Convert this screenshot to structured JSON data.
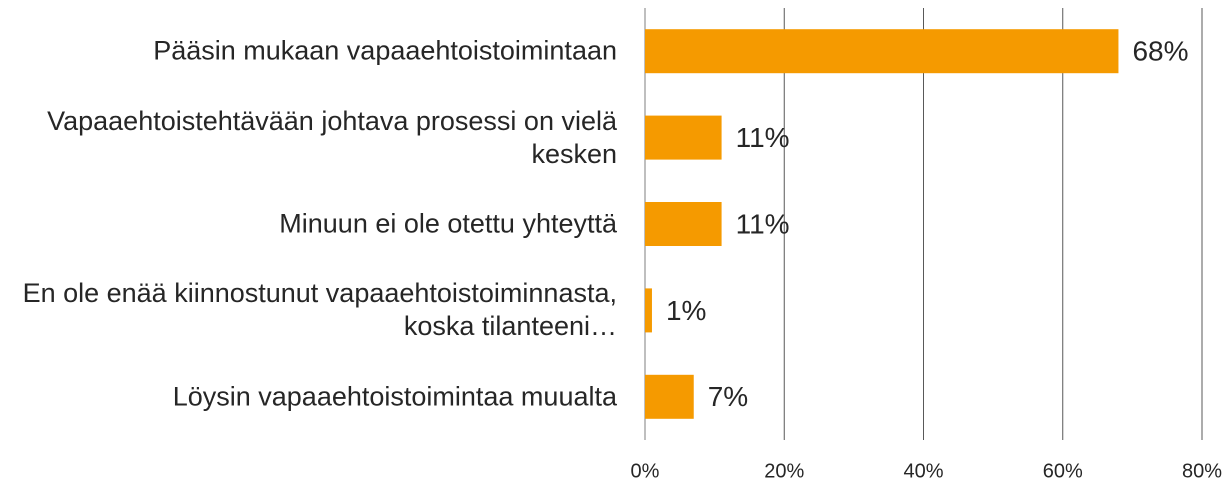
{
  "chart_data": {
    "type": "bar",
    "orientation": "horizontal",
    "categories": [
      "Pääsin mukaan vapaaehtoistoimintaan",
      "Vapaaehtoistehtävään johtava prosessi on vielä kesken",
      "Minuun ei ole otettu yhteyttä",
      "En ole enää kiinnostunut vapaaehtoistoiminnasta, koska tilanteeni…",
      "Löysin vapaaehtoistoimintaa muualta"
    ],
    "values": [
      68,
      11,
      11,
      1,
      7
    ],
    "value_labels": [
      "68%",
      "11%",
      "11%",
      "1%",
      "7%"
    ],
    "color": "#f59a00",
    "xlim": [
      0,
      80
    ],
    "xticks": [
      {
        "value": 0,
        "label": "0%"
      },
      {
        "value": 20,
        "label": "20%"
      },
      {
        "value": 40,
        "label": "40%"
      },
      {
        "value": 60,
        "label": "60%"
      },
      {
        "value": 80,
        "label": "80%"
      }
    ],
    "grid": true
  }
}
